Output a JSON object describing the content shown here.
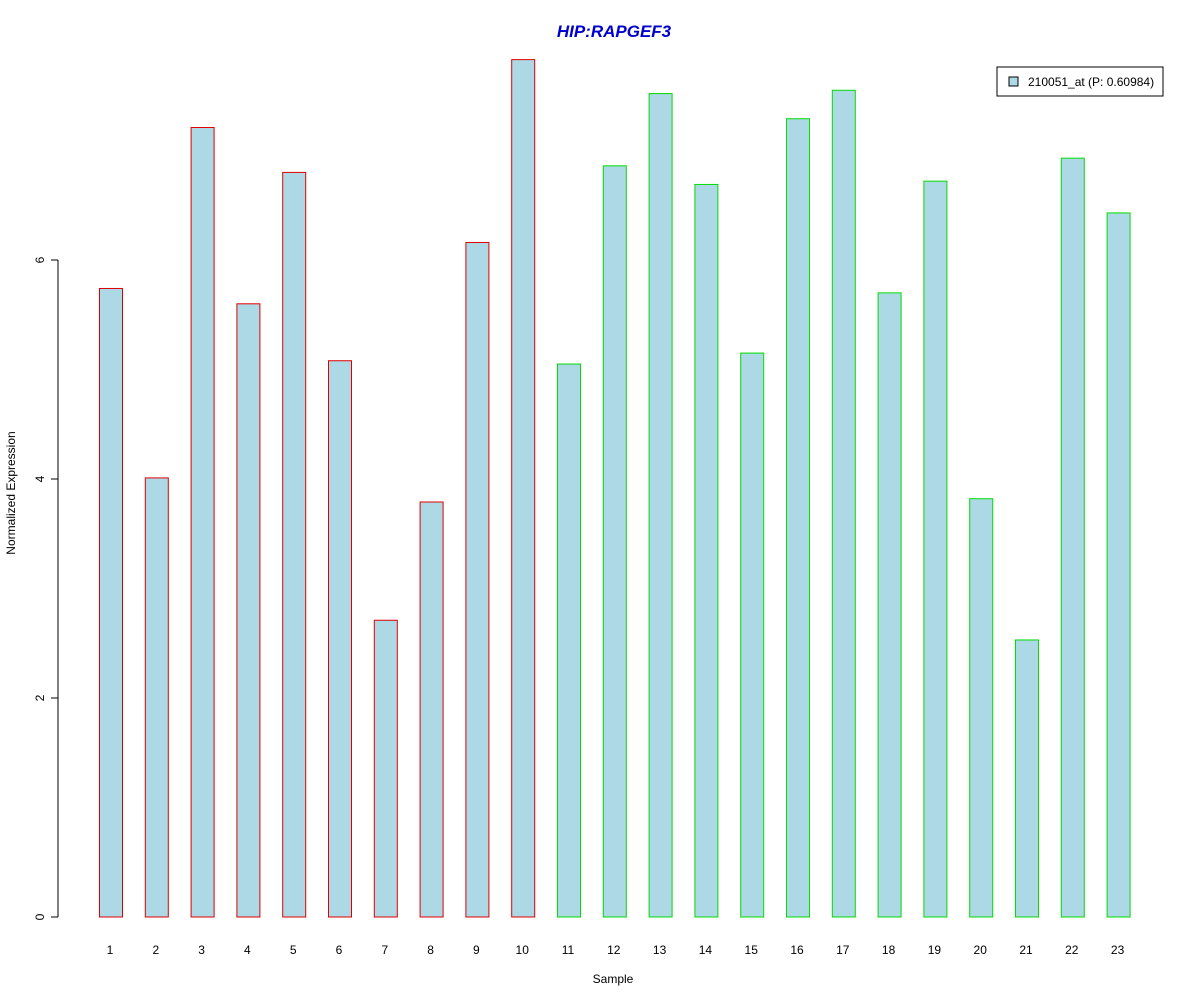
{
  "chart_data": {
    "type": "bar",
    "title": "HIP:RAPGEF3",
    "xlabel": "Sample",
    "ylabel": "Normalized Expression",
    "categories": [
      "1",
      "2",
      "3",
      "4",
      "5",
      "6",
      "7",
      "8",
      "9",
      "10",
      "11",
      "12",
      "13",
      "14",
      "15",
      "16",
      "17",
      "18",
      "19",
      "20",
      "21",
      "22",
      "23"
    ],
    "series": [
      {
        "name": "210051_at (P: 0.60984)",
        "values": [
          5.74,
          4.01,
          7.21,
          5.6,
          6.8,
          5.08,
          2.71,
          3.79,
          6.16,
          7.83,
          5.05,
          6.86,
          7.52,
          6.69,
          5.15,
          7.29,
          7.55,
          5.7,
          6.72,
          3.82,
          2.53,
          6.93,
          6.43
        ]
      }
    ],
    "group_border_colors": [
      "#e00000",
      "#e00000",
      "#e00000",
      "#e00000",
      "#e00000",
      "#e00000",
      "#e00000",
      "#e00000",
      "#e00000",
      "#e00000",
      "#00dd00",
      "#00dd00",
      "#00dd00",
      "#00dd00",
      "#00dd00",
      "#00dd00",
      "#00dd00",
      "#00dd00",
      "#00dd00",
      "#00dd00",
      "#00dd00",
      "#00dd00",
      "#00dd00"
    ],
    "bar_fill_color": "#add8e6",
    "title_color": "#0000cc",
    "yticks": [
      0,
      2,
      4,
      6
    ],
    "ylim": [
      0,
      7.83
    ],
    "grid": false,
    "legend_position": "top-right"
  }
}
